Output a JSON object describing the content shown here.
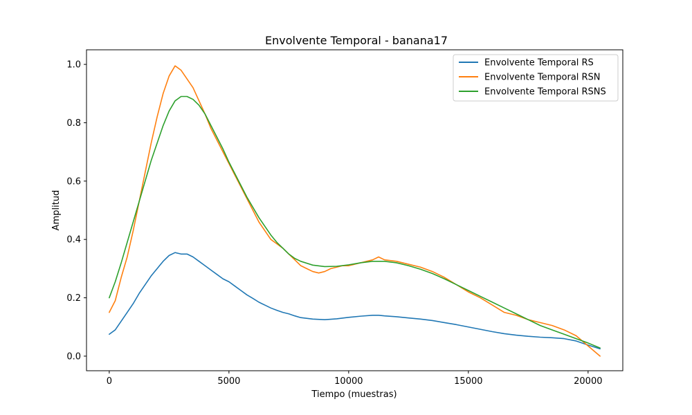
{
  "chart_data": {
    "type": "line",
    "title": "Envolvente Temporal - banana17",
    "xlabel": "Tiempo (muestras)",
    "ylabel": "Amplitud",
    "xlim": [
      -950,
      21450
    ],
    "ylim": [
      -0.05,
      1.05
    ],
    "x_ticks": [
      0,
      5000,
      10000,
      15000,
      20000
    ],
    "x_tick_labels": [
      "0",
      "5000",
      "10000",
      "15000",
      "20000"
    ],
    "y_ticks": [
      0.0,
      0.2,
      0.4,
      0.6,
      0.8,
      1.0
    ],
    "y_tick_labels": [
      "0.0",
      "0.2",
      "0.4",
      "0.6",
      "0.8",
      "1.0"
    ],
    "grid": false,
    "legend_position": "top-right",
    "series": [
      {
        "name": "Envolvente Temporal RS",
        "color": "#1f77b4",
        "x": [
          0,
          250,
          500,
          750,
          1000,
          1250,
          1500,
          1750,
          2000,
          2250,
          2500,
          2750,
          3000,
          3250,
          3500,
          3750,
          4000,
          4250,
          4500,
          4750,
          5000,
          5250,
          5500,
          5750,
          6000,
          6250,
          6500,
          6750,
          7000,
          7250,
          7500,
          7750,
          8000,
          8500,
          9000,
          9500,
          10000,
          10500,
          11000,
          11250,
          11500,
          12000,
          12500,
          13000,
          13500,
          14000,
          14500,
          15000,
          15500,
          16000,
          16500,
          17000,
          17500,
          18000,
          18500,
          19000,
          19500,
          20000,
          20500
        ],
        "y": [
          0.075,
          0.09,
          0.12,
          0.15,
          0.18,
          0.215,
          0.245,
          0.275,
          0.3,
          0.325,
          0.345,
          0.355,
          0.35,
          0.35,
          0.34,
          0.325,
          0.31,
          0.295,
          0.28,
          0.265,
          0.255,
          0.24,
          0.225,
          0.21,
          0.198,
          0.185,
          0.175,
          0.165,
          0.157,
          0.15,
          0.145,
          0.138,
          0.132,
          0.127,
          0.125,
          0.128,
          0.133,
          0.137,
          0.14,
          0.14,
          0.138,
          0.135,
          0.131,
          0.127,
          0.122,
          0.115,
          0.108,
          0.1,
          0.092,
          0.084,
          0.077,
          0.072,
          0.068,
          0.065,
          0.063,
          0.06,
          0.052,
          0.038,
          0.025
        ]
      },
      {
        "name": "Envolvente Temporal RSN",
        "color": "#ff7f0e",
        "x": [
          0,
          250,
          500,
          750,
          1000,
          1250,
          1500,
          1750,
          2000,
          2250,
          2500,
          2750,
          3000,
          3250,
          3500,
          3750,
          4000,
          4250,
          4500,
          4750,
          5000,
          5250,
          5500,
          5750,
          6000,
          6250,
          6500,
          6750,
          7000,
          7250,
          7500,
          7750,
          8000,
          8250,
          8500,
          8750,
          9000,
          9250,
          9500,
          9750,
          10000,
          10500,
          11000,
          11250,
          11500,
          12000,
          12500,
          13000,
          13500,
          14000,
          14500,
          15000,
          15500,
          16000,
          16500,
          17000,
          17500,
          18000,
          18500,
          19000,
          19500,
          20000,
          20500
        ],
        "y": [
          0.15,
          0.19,
          0.27,
          0.34,
          0.43,
          0.53,
          0.63,
          0.73,
          0.82,
          0.9,
          0.96,
          0.995,
          0.98,
          0.95,
          0.92,
          0.875,
          0.83,
          0.78,
          0.74,
          0.7,
          0.66,
          0.62,
          0.58,
          0.54,
          0.5,
          0.46,
          0.43,
          0.4,
          0.385,
          0.37,
          0.35,
          0.33,
          0.31,
          0.3,
          0.29,
          0.285,
          0.29,
          0.3,
          0.305,
          0.31,
          0.31,
          0.32,
          0.33,
          0.34,
          0.33,
          0.325,
          0.315,
          0.305,
          0.29,
          0.27,
          0.245,
          0.22,
          0.2,
          0.175,
          0.15,
          0.14,
          0.125,
          0.115,
          0.105,
          0.09,
          0.07,
          0.035,
          0.0
        ]
      },
      {
        "name": "Envolvente Temporal RSNS",
        "color": "#2ca02c",
        "x": [
          0,
          250,
          500,
          750,
          1000,
          1250,
          1500,
          1750,
          2000,
          2250,
          2500,
          2750,
          3000,
          3250,
          3500,
          3750,
          4000,
          4250,
          4500,
          4750,
          5000,
          5250,
          5500,
          5750,
          6000,
          6250,
          6500,
          6750,
          7000,
          7250,
          7500,
          7750,
          8000,
          8500,
          9000,
          9500,
          10000,
          10500,
          11000,
          11500,
          12000,
          12500,
          13000,
          13500,
          14000,
          14500,
          15000,
          15500,
          16000,
          16500,
          17000,
          17500,
          18000,
          18500,
          19000,
          19500,
          20000,
          20500
        ],
        "y": [
          0.2,
          0.255,
          0.32,
          0.39,
          0.46,
          0.53,
          0.6,
          0.67,
          0.73,
          0.79,
          0.84,
          0.875,
          0.89,
          0.89,
          0.88,
          0.86,
          0.83,
          0.79,
          0.75,
          0.71,
          0.665,
          0.625,
          0.585,
          0.545,
          0.51,
          0.475,
          0.445,
          0.415,
          0.39,
          0.37,
          0.35,
          0.335,
          0.325,
          0.312,
          0.307,
          0.308,
          0.313,
          0.32,
          0.325,
          0.325,
          0.32,
          0.31,
          0.298,
          0.283,
          0.265,
          0.245,
          0.225,
          0.205,
          0.185,
          0.165,
          0.145,
          0.125,
          0.105,
          0.09,
          0.075,
          0.06,
          0.045,
          0.028
        ]
      }
    ]
  }
}
